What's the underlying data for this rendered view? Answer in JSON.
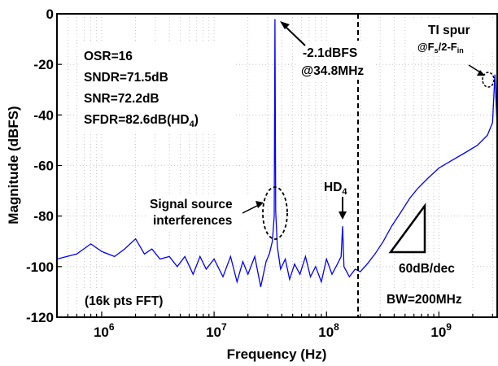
{
  "chart_data": {
    "type": "line",
    "title": "",
    "xlabel": "Frequency (Hz)",
    "ylabel": "Magnitude (dBFS)",
    "x_scale": "log",
    "xlim": [
      400000,
      3300000000
    ],
    "ylim": [
      -120,
      0
    ],
    "x_ticks": [
      {
        "value": 1000000,
        "base": "10",
        "exp": "6"
      },
      {
        "value": 10000000,
        "base": "10",
        "exp": "7"
      },
      {
        "value": 100000000,
        "base": "10",
        "exp": "8"
      },
      {
        "value": 1000000000,
        "base": "10",
        "exp": "9"
      }
    ],
    "y_ticks": [
      0,
      -20,
      -40,
      -60,
      -80,
      -100,
      -120
    ],
    "y_tick_labels": [
      "0",
      "-20",
      "-40",
      "-60",
      "-80",
      "-100",
      "-120"
    ],
    "grid": true,
    "line_color": "#0000ff",
    "series": [
      {
        "points": [
          [
            400000,
            -97
          ],
          [
            600000,
            -95
          ],
          [
            800000,
            -91
          ],
          [
            1000000,
            -94
          ],
          [
            1300000,
            -96
          ],
          [
            1600000,
            -93
          ],
          [
            2000000,
            -89
          ],
          [
            2400000,
            -95
          ],
          [
            2800000,
            -93
          ],
          [
            3300000,
            -97
          ],
          [
            4000000,
            -96
          ],
          [
            4700000,
            -100
          ],
          [
            5500000,
            -96
          ],
          [
            6500000,
            -103
          ],
          [
            7500000,
            -96
          ],
          [
            8500000,
            -101
          ],
          [
            10000000,
            -97
          ],
          [
            12000000,
            -104
          ],
          [
            14000000,
            -96
          ],
          [
            16000000,
            -106
          ],
          [
            18000000,
            -98
          ],
          [
            20000000,
            -103
          ],
          [
            23000000,
            -96
          ],
          [
            26000000,
            -108
          ],
          [
            29000000,
            -98
          ],
          [
            31000000,
            -95
          ],
          [
            33000000,
            -90
          ],
          [
            34300000,
            -80
          ],
          [
            34800000,
            -2.1
          ],
          [
            35300000,
            -78
          ],
          [
            36500000,
            -92
          ],
          [
            39000000,
            -101
          ],
          [
            43000000,
            -97
          ],
          [
            47000000,
            -105
          ],
          [
            52000000,
            -99
          ],
          [
            58000000,
            -103
          ],
          [
            65000000,
            -96
          ],
          [
            72000000,
            -104
          ],
          [
            80000000,
            -100
          ],
          [
            90000000,
            -106
          ],
          [
            100000000,
            -97
          ],
          [
            112000000,
            -103
          ],
          [
            125000000,
            -99
          ],
          [
            135000000,
            -96
          ],
          [
            139000000,
            -84
          ],
          [
            143000000,
            -100
          ],
          [
            160000000,
            -104
          ],
          [
            180000000,
            -101
          ],
          [
            200000000,
            -102
          ],
          [
            230000000,
            -99
          ],
          [
            270000000,
            -95
          ],
          [
            320000000,
            -90
          ],
          [
            380000000,
            -84
          ],
          [
            450000000,
            -79
          ],
          [
            550000000,
            -73
          ],
          [
            650000000,
            -69
          ],
          [
            800000000,
            -65
          ],
          [
            1000000000,
            -61
          ],
          [
            1300000000,
            -58
          ],
          [
            1700000000,
            -55
          ],
          [
            2200000000,
            -52
          ],
          [
            2700000000,
            -48
          ],
          [
            3000000000,
            -43
          ],
          [
            3150000000,
            -24
          ],
          [
            3300000000,
            -45
          ]
        ]
      }
    ],
    "annotations": {
      "metrics": [
        "OSR=16",
        "SNDR=71.5dB",
        "SNR=72.2dB"
      ],
      "sfdr_text": "SFDR=82.6dB(HD",
      "sfdr_sub": "4",
      "sfdr_close": ")",
      "signal_line1": "-2.1dBFS",
      "signal_line2": "@34.8MHz",
      "ti_line1": "TI spur",
      "ti_line2_a": "@F",
      "ti_line2_sub1": "s",
      "ti_line2_b": "/2-F",
      "ti_line2_sub2": "in",
      "hd_main": "HD",
      "hd_sub": "4",
      "interf_line1": "Signal source",
      "interf_line2": "interferences",
      "slope": "60dB/dec",
      "fft": "(16k pts FFT)",
      "bw": "BW=200MHz"
    }
  }
}
